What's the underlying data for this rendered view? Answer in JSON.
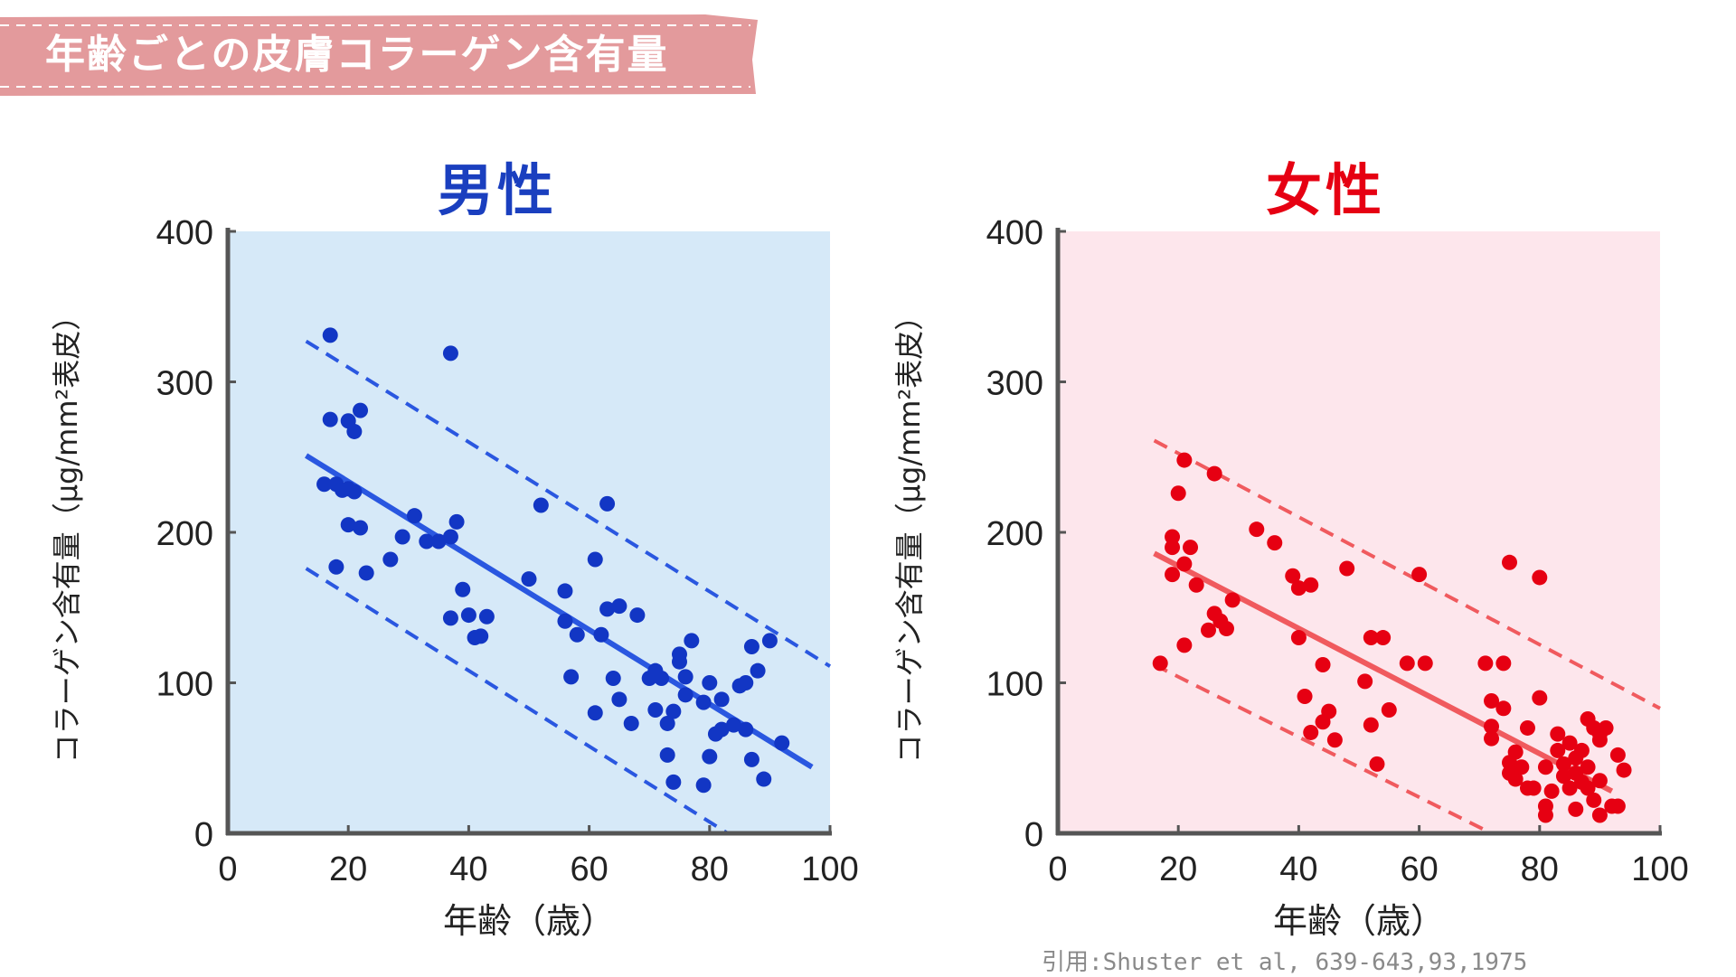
{
  "banner": {
    "title": "年齢ごとの皮膚コラーゲン含有量",
    "color": "#e39a9c"
  },
  "citation": "引用:Shuster et al, 639-643,93,1975",
  "chart_data": [
    {
      "type": "scatter",
      "title": "男性",
      "title_color": "#1a3fbf",
      "xlabel": "年齢（歳）",
      "ylabel": "コラーゲン含有量（μg/mm²表皮）",
      "xlim": [
        0,
        100
      ],
      "ylim": [
        0,
        400
      ],
      "xticks": [
        "0",
        "20",
        "40",
        "60",
        "80",
        "100"
      ],
      "yticks": [
        "0",
        "100",
        "200",
        "300",
        "400"
      ],
      "background": "#d6e9f8",
      "point_color": "#1236c4",
      "line_color": "#2a57e0",
      "regression": {
        "x": [
          13,
          97
        ],
        "y": [
          251,
          44
        ]
      },
      "upper_band": {
        "x": [
          13,
          100
        ],
        "y": [
          327,
          111
        ]
      },
      "lower_band": {
        "x": [
          13,
          83
        ],
        "y": [
          176,
          0
        ]
      },
      "points": [
        [
          17,
          331
        ],
        [
          17,
          275
        ],
        [
          20,
          274
        ],
        [
          21,
          267
        ],
        [
          22,
          281
        ],
        [
          16,
          232
        ],
        [
          18,
          232
        ],
        [
          19,
          228
        ],
        [
          20,
          229
        ],
        [
          21,
          227
        ],
        [
          20,
          205
        ],
        [
          22,
          203
        ],
        [
          18,
          177
        ],
        [
          23,
          173
        ],
        [
          27,
          182
        ],
        [
          29,
          197
        ],
        [
          31,
          211
        ],
        [
          33,
          194
        ],
        [
          35,
          194
        ],
        [
          37,
          319
        ],
        [
          37,
          197
        ],
        [
          38,
          207
        ],
        [
          37,
          143
        ],
        [
          39,
          162
        ],
        [
          40,
          145
        ],
        [
          41,
          130
        ],
        [
          42,
          131
        ],
        [
          43,
          144
        ],
        [
          50,
          169
        ],
        [
          52,
          218
        ],
        [
          56,
          161
        ],
        [
          56,
          141
        ],
        [
          58,
          132
        ],
        [
          57,
          104
        ],
        [
          61,
          182
        ],
        [
          62,
          132
        ],
        [
          63,
          149
        ],
        [
          63,
          219
        ],
        [
          65,
          151
        ],
        [
          64,
          103
        ],
        [
          65,
          89
        ],
        [
          61,
          80
        ],
        [
          67,
          73
        ],
        [
          68,
          145
        ],
        [
          70,
          103
        ],
        [
          71,
          108
        ],
        [
          72,
          103
        ],
        [
          71,
          82
        ],
        [
          73,
          73
        ],
        [
          73,
          52
        ],
        [
          74,
          81
        ],
        [
          74,
          34
        ],
        [
          75,
          114
        ],
        [
          75,
          119
        ],
        [
          76,
          104
        ],
        [
          77,
          128
        ],
        [
          76,
          92
        ],
        [
          79,
          87
        ],
        [
          80,
          100
        ],
        [
          80,
          51
        ],
        [
          79,
          32
        ],
        [
          81,
          66
        ],
        [
          82,
          89
        ],
        [
          82,
          69
        ],
        [
          84,
          72
        ],
        [
          85,
          98
        ],
        [
          86,
          69
        ],
        [
          86,
          100
        ],
        [
          87,
          124
        ],
        [
          87,
          49
        ],
        [
          88,
          108
        ],
        [
          89,
          36
        ],
        [
          90,
          128
        ],
        [
          92,
          60
        ]
      ]
    },
    {
      "type": "scatter",
      "title": "女性",
      "title_color": "#e60012",
      "xlabel": "年齢（歳）",
      "ylabel": "コラーゲン含有量（μg/mm²表皮）",
      "xlim": [
        0,
        100
      ],
      "ylim": [
        0,
        400
      ],
      "xticks": [
        "0",
        "20",
        "40",
        "60",
        "80",
        "100"
      ],
      "yticks": [
        "0",
        "100",
        "200",
        "300",
        "400"
      ],
      "background": "#fde6ec",
      "point_color": "#e60012",
      "line_color": "#f05a5e",
      "regression": {
        "x": [
          16,
          92
        ],
        "y": [
          186,
          28
        ]
      },
      "upper_band": {
        "x": [
          16,
          100
        ],
        "y": [
          261,
          83
        ]
      },
      "lower_band": {
        "x": [
          16,
          72
        ],
        "y": [
          112,
          0
        ]
      },
      "points": [
        [
          17,
          113
        ],
        [
          19,
          197
        ],
        [
          19,
          190
        ],
        [
          19,
          172
        ],
        [
          20,
          226
        ],
        [
          21,
          248
        ],
        [
          21,
          179
        ],
        [
          22,
          190
        ],
        [
          21,
          125
        ],
        [
          23,
          165
        ],
        [
          25,
          135
        ],
        [
          26,
          239
        ],
        [
          26,
          146
        ],
        [
          27,
          141
        ],
        [
          28,
          136
        ],
        [
          29,
          155
        ],
        [
          33,
          202
        ],
        [
          36,
          193
        ],
        [
          39,
          171
        ],
        [
          40,
          163
        ],
        [
          40,
          130
        ],
        [
          42,
          165
        ],
        [
          41,
          91
        ],
        [
          42,
          67
        ],
        [
          44,
          112
        ],
        [
          44,
          74
        ],
        [
          45,
          81
        ],
        [
          46,
          62
        ],
        [
          48,
          176
        ],
        [
          51,
          101
        ],
        [
          52,
          72
        ],
        [
          52,
          130
        ],
        [
          53,
          46
        ],
        [
          54,
          130
        ],
        [
          55,
          82
        ],
        [
          58,
          113
        ],
        [
          60,
          172
        ],
        [
          61,
          113
        ],
        [
          71,
          113
        ],
        [
          72,
          88
        ],
        [
          72,
          63
        ],
        [
          72,
          71
        ],
        [
          74,
          113
        ],
        [
          74,
          83
        ],
        [
          75,
          47
        ],
        [
          75,
          40
        ],
        [
          76,
          54
        ],
        [
          75,
          180
        ],
        [
          76,
          36
        ],
        [
          77,
          44
        ],
        [
          78,
          30
        ],
        [
          78,
          70
        ],
        [
          79,
          30
        ],
        [
          80,
          90
        ],
        [
          80,
          170
        ],
        [
          81,
          44
        ],
        [
          81,
          18
        ],
        [
          81,
          12
        ],
        [
          82,
          28
        ],
        [
          83,
          66
        ],
        [
          83,
          55
        ],
        [
          84,
          46
        ],
        [
          84,
          38
        ],
        [
          85,
          60
        ],
        [
          85,
          30
        ],
        [
          86,
          50
        ],
        [
          86,
          40
        ],
        [
          87,
          55
        ],
        [
          86,
          16
        ],
        [
          87,
          34
        ],
        [
          88,
          30
        ],
        [
          88,
          44
        ],
        [
          89,
          22
        ],
        [
          89,
          70
        ],
        [
          90,
          66
        ],
        [
          90,
          12
        ],
        [
          90,
          35
        ],
        [
          91,
          70
        ],
        [
          92,
          18
        ],
        [
          93,
          52
        ],
        [
          93,
          18
        ],
        [
          94,
          42
        ],
        [
          88,
          76
        ],
        [
          90,
          62
        ]
      ]
    }
  ]
}
